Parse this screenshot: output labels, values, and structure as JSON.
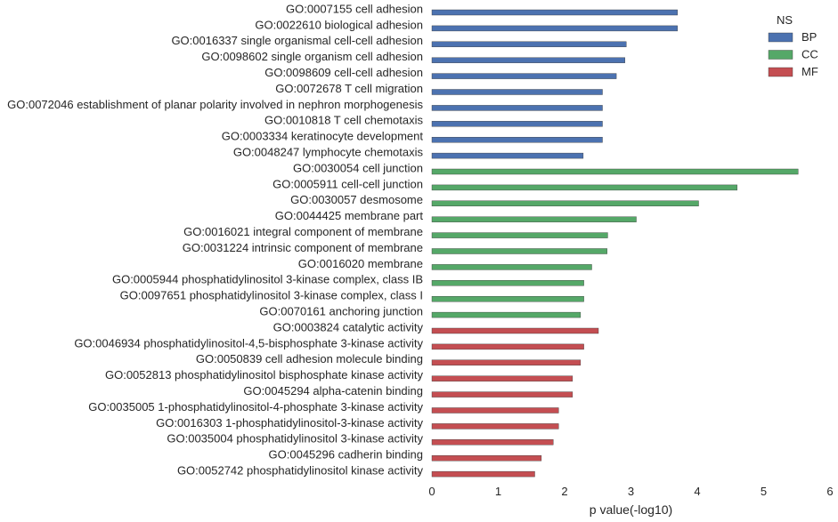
{
  "chart_data": {
    "type": "bar",
    "orientation": "horizontal",
    "title": "",
    "xlabel": "p value(-log10)",
    "ylabel": "",
    "xlim": [
      0,
      6
    ],
    "xticks": [
      "0",
      "1",
      "2",
      "3",
      "4",
      "5",
      "6"
    ],
    "grid": false,
    "legend": {
      "title": "NS",
      "placement": "top-right",
      "entries": [
        {
          "name": "BP",
          "color": "#4c72b0"
        },
        {
          "name": "CC",
          "color": "#55a868"
        },
        {
          "name": "MF",
          "color": "#c44e52"
        }
      ]
    },
    "categories": [
      {
        "label": "GO:0007155 cell adhesion",
        "group": "BP",
        "value": 3.7
      },
      {
        "label": "GO:0022610 biological adhesion",
        "group": "BP",
        "value": 3.7
      },
      {
        "label": "GO:0016337 single organismal cell-cell adhesion",
        "group": "BP",
        "value": 2.93
      },
      {
        "label": "GO:0098602 single organism cell adhesion",
        "group": "BP",
        "value": 2.91
      },
      {
        "label": "GO:0098609 cell-cell adhesion",
        "group": "BP",
        "value": 2.78
      },
      {
        "label": "GO:0072678 T cell migration",
        "group": "BP",
        "value": 2.57
      },
      {
        "label": "GO:0072046 establishment of planar polarity involved in nephron morphogenesis",
        "group": "BP",
        "value": 2.57
      },
      {
        "label": "GO:0010818 T cell chemotaxis",
        "group": "BP",
        "value": 2.57
      },
      {
        "label": "GO:0003334 keratinocyte development",
        "group": "BP",
        "value": 2.57
      },
      {
        "label": "GO:0048247 lymphocyte chemotaxis",
        "group": "BP",
        "value": 2.28
      },
      {
        "label": "GO:0030054 cell junction",
        "group": "CC",
        "value": 5.52
      },
      {
        "label": "GO:0005911 cell-cell junction",
        "group": "CC",
        "value": 4.6
      },
      {
        "label": "GO:0030057 desmosome",
        "group": "CC",
        "value": 4.02
      },
      {
        "label": "GO:0044425 membrane part",
        "group": "CC",
        "value": 3.08
      },
      {
        "label": "GO:0016021 integral component of membrane",
        "group": "CC",
        "value": 2.65
      },
      {
        "label": "GO:0031224 intrinsic component of membrane",
        "group": "CC",
        "value": 2.64
      },
      {
        "label": "GO:0016020 membrane",
        "group": "CC",
        "value": 2.41
      },
      {
        "label": "GO:0005944 phosphatidylinositol 3-kinase complex, class IB",
        "group": "CC",
        "value": 2.29
      },
      {
        "label": "GO:0097651 phosphatidylinositol 3-kinase complex, class I",
        "group": "CC",
        "value": 2.29
      },
      {
        "label": "GO:0070161 anchoring junction",
        "group": "CC",
        "value": 2.24
      },
      {
        "label": "GO:0003824 catalytic activity",
        "group": "MF",
        "value": 2.51
      },
      {
        "label": "GO:0046934 phosphatidylinositol-4,5-bisphosphate 3-kinase activity",
        "group": "MF",
        "value": 2.29
      },
      {
        "label": "GO:0050839 cell adhesion molecule binding",
        "group": "MF",
        "value": 2.24
      },
      {
        "label": "GO:0052813 phosphatidylinositol bisphosphate kinase activity",
        "group": "MF",
        "value": 2.12
      },
      {
        "label": "GO:0045294 alpha-catenin binding",
        "group": "MF",
        "value": 2.12
      },
      {
        "label": "GO:0035005 1-phosphatidylinositol-4-phosphate 3-kinase activity",
        "group": "MF",
        "value": 1.91
      },
      {
        "label": "GO:0016303 1-phosphatidylinositol-3-kinase activity",
        "group": "MF",
        "value": 1.91
      },
      {
        "label": "GO:0035004 phosphatidylinositol 3-kinase activity",
        "group": "MF",
        "value": 1.83
      },
      {
        "label": "GO:0045296 cadherin binding",
        "group": "MF",
        "value": 1.65
      },
      {
        "label": "GO:0052742 phosphatidylinositol kinase activity",
        "group": "MF",
        "value": 1.55
      }
    ]
  }
}
